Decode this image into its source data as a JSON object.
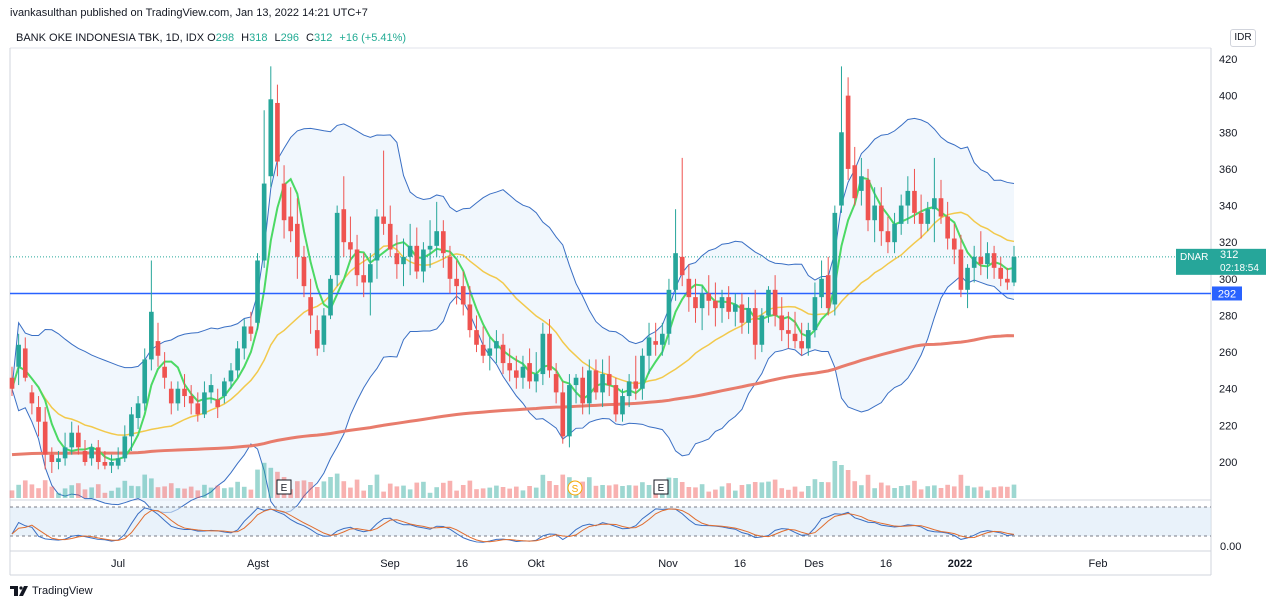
{
  "header": {
    "publisher": "ivankasulthan published on TradingView.com, Jan 13, 2022 14:21 UTC+7"
  },
  "legend": {
    "symbol": "BANK OKE INDONESIA TBK, 1D, IDX",
    "open_label": "O",
    "open": "298",
    "high_label": "H",
    "high": "318",
    "low_label": "L",
    "low": "296",
    "close_label": "C",
    "close": "312",
    "change": "+16 (+5.41%)"
  },
  "currency": "IDR",
  "footer": {
    "brand": "TradingView"
  },
  "colors": {
    "up": "#26a69a",
    "down": "#ef5350",
    "bb": "#3a6fc4",
    "ma_fast": "#4cd964",
    "ma_mid": "#f2c94c",
    "ma_long": "#e87c6c",
    "hline": "#2962ff"
  },
  "chart_data": {
    "type": "candlestick",
    "ylim": [
      185,
      425
    ],
    "y_ticks": [
      "420",
      "400",
      "380",
      "360",
      "340",
      "320",
      "300",
      "280",
      "260",
      "240",
      "220",
      "200"
    ],
    "x_ticks": [
      "Jul",
      "Agst",
      "Sep",
      "16",
      "Okt",
      "Nov",
      "16",
      "Des",
      "16",
      "2022",
      "Feb"
    ],
    "price_label": {
      "ticker": "DNAR",
      "value": "312",
      "countdown": "02:18:54"
    },
    "hline_label": "292",
    "hline_value": 292,
    "event_labels": [
      "E",
      "S",
      "E"
    ],
    "oscillator_tick": "0.00",
    "candles": [
      [
        246,
        252,
        236,
        240
      ],
      [
        252,
        270,
        242,
        264
      ],
      [
        262,
        268,
        244,
        246
      ],
      [
        238,
        242,
        226,
        232
      ],
      [
        230,
        236,
        214,
        222
      ],
      [
        222,
        230,
        196,
        204
      ],
      [
        204,
        208,
        194,
        200
      ],
      [
        200,
        206,
        196,
        202
      ],
      [
        202,
        216,
        198,
        208
      ],
      [
        208,
        222,
        204,
        216
      ],
      [
        216,
        220,
        204,
        208
      ],
      [
        206,
        212,
        198,
        200
      ],
      [
        202,
        210,
        198,
        208
      ],
      [
        208,
        212,
        196,
        200
      ],
      [
        200,
        206,
        196,
        198
      ],
      [
        198,
        204,
        194,
        200
      ],
      [
        198,
        208,
        196,
        202
      ],
      [
        202,
        220,
        200,
        214
      ],
      [
        214,
        230,
        206,
        226
      ],
      [
        224,
        236,
        218,
        232
      ],
      [
        232,
        262,
        228,
        256
      ],
      [
        256,
        310,
        250,
        282
      ],
      [
        266,
        276,
        252,
        258
      ],
      [
        252,
        260,
        240,
        246
      ],
      [
        240,
        244,
        226,
        232
      ],
      [
        232,
        244,
        228,
        240
      ],
      [
        240,
        248,
        230,
        236
      ],
      [
        236,
        242,
        226,
        232
      ],
      [
        232,
        238,
        222,
        226
      ],
      [
        226,
        244,
        224,
        238
      ],
      [
        238,
        248,
        232,
        242
      ],
      [
        234,
        240,
        224,
        230
      ],
      [
        236,
        246,
        232,
        244
      ],
      [
        244,
        254,
        240,
        250
      ],
      [
        250,
        266,
        246,
        262
      ],
      [
        262,
        278,
        256,
        274
      ],
      [
        274,
        282,
        266,
        270
      ],
      [
        276,
        314,
        272,
        310
      ],
      [
        310,
        392,
        306,
        352
      ],
      [
        356,
        416,
        350,
        398
      ],
      [
        396,
        406,
        356,
        364
      ],
      [
        352,
        362,
        322,
        332
      ],
      [
        334,
        350,
        320,
        326
      ],
      [
        330,
        344,
        300,
        312
      ],
      [
        312,
        318,
        290,
        296
      ],
      [
        290,
        300,
        270,
        280
      ],
      [
        272,
        280,
        258,
        262
      ],
      [
        264,
        284,
        260,
        280
      ],
      [
        280,
        302,
        278,
        300
      ],
      [
        302,
        340,
        296,
        336
      ],
      [
        338,
        356,
        312,
        320
      ],
      [
        320,
        334,
        310,
        316
      ],
      [
        316,
        324,
        296,
        302
      ],
      [
        302,
        314,
        290,
        298
      ],
      [
        298,
        314,
        280,
        308
      ],
      [
        310,
        338,
        300,
        334
      ],
      [
        334,
        370,
        324,
        330
      ],
      [
        330,
        340,
        312,
        316
      ],
      [
        314,
        324,
        300,
        308
      ],
      [
        308,
        322,
        296,
        312
      ],
      [
        312,
        330,
        302,
        318
      ],
      [
        318,
        328,
        300,
        304
      ],
      [
        304,
        320,
        298,
        316
      ],
      [
        316,
        332,
        306,
        318
      ],
      [
        318,
        342,
        312,
        326
      ],
      [
        326,
        332,
        306,
        314
      ],
      [
        312,
        318,
        292,
        300
      ],
      [
        300,
        310,
        286,
        296
      ],
      [
        296,
        304,
        280,
        286
      ],
      [
        286,
        296,
        268,
        272
      ],
      [
        272,
        280,
        260,
        264
      ],
      [
        264,
        274,
        254,
        258
      ],
      [
        258,
        268,
        250,
        262
      ],
      [
        262,
        272,
        254,
        266
      ],
      [
        264,
        270,
        248,
        254
      ],
      [
        254,
        262,
        244,
        250
      ],
      [
        250,
        258,
        240,
        246
      ],
      [
        246,
        258,
        240,
        252
      ],
      [
        254,
        262,
        240,
        244
      ],
      [
        244,
        260,
        238,
        248
      ],
      [
        248,
        276,
        242,
        270
      ],
      [
        270,
        278,
        246,
        250
      ],
      [
        248,
        254,
        232,
        238
      ],
      [
        238,
        244,
        210,
        214
      ],
      [
        214,
        248,
        208,
        242
      ],
      [
        242,
        248,
        232,
        246
      ],
      [
        246,
        252,
        226,
        232
      ],
      [
        232,
        256,
        226,
        250
      ],
      [
        250,
        256,
        234,
        238
      ],
      [
        238,
        256,
        230,
        248
      ],
      [
        248,
        258,
        236,
        242
      ],
      [
        242,
        246,
        222,
        226
      ],
      [
        226,
        240,
        222,
        236
      ],
      [
        236,
        248,
        230,
        244
      ],
      [
        244,
        258,
        234,
        240
      ],
      [
        240,
        262,
        234,
        258
      ],
      [
        258,
        276,
        248,
        268
      ],
      [
        266,
        276,
        258,
        264
      ],
      [
        264,
        276,
        258,
        270
      ],
      [
        270,
        300,
        264,
        294
      ],
      [
        294,
        338,
        288,
        314
      ],
      [
        312,
        366,
        296,
        302
      ],
      [
        300,
        308,
        282,
        290
      ],
      [
        290,
        300,
        276,
        284
      ],
      [
        284,
        296,
        272,
        292
      ],
      [
        292,
        302,
        280,
        288
      ],
      [
        288,
        298,
        274,
        284
      ],
      [
        284,
        294,
        276,
        290
      ],
      [
        290,
        296,
        278,
        282
      ],
      [
        282,
        292,
        274,
        286
      ],
      [
        286,
        292,
        270,
        276
      ],
      [
        276,
        290,
        270,
        284
      ],
      [
        284,
        294,
        256,
        264
      ],
      [
        264,
        284,
        260,
        280
      ],
      [
        280,
        296,
        276,
        294
      ],
      [
        294,
        302,
        274,
        280
      ],
      [
        280,
        290,
        266,
        272
      ],
      [
        272,
        282,
        262,
        270
      ],
      [
        270,
        282,
        262,
        266
      ],
      [
        266,
        276,
        258,
        262
      ],
      [
        262,
        276,
        258,
        272
      ],
      [
        272,
        298,
        268,
        290
      ],
      [
        290,
        310,
        284,
        300
      ],
      [
        302,
        312,
        280,
        284
      ],
      [
        286,
        340,
        280,
        336
      ],
      [
        340,
        416,
        336,
        380
      ],
      [
        400,
        410,
        354,
        360
      ],
      [
        362,
        372,
        340,
        344
      ],
      [
        348,
        366,
        340,
        356
      ],
      [
        354,
        360,
        326,
        332
      ],
      [
        332,
        350,
        320,
        340
      ],
      [
        340,
        350,
        318,
        326
      ],
      [
        326,
        334,
        314,
        320
      ],
      [
        320,
        336,
        314,
        330
      ],
      [
        330,
        346,
        324,
        340
      ],
      [
        340,
        356,
        330,
        348
      ],
      [
        348,
        360,
        330,
        336
      ],
      [
        336,
        346,
        322,
        330
      ],
      [
        330,
        342,
        326,
        338
      ],
      [
        338,
        366,
        320,
        344
      ],
      [
        344,
        354,
        330,
        334
      ],
      [
        334,
        342,
        316,
        322
      ],
      [
        322,
        330,
        308,
        316
      ],
      [
        316,
        324,
        290,
        294
      ],
      [
        294,
        308,
        284,
        306
      ],
      [
        306,
        318,
        298,
        312
      ],
      [
        312,
        326,
        302,
        308
      ],
      [
        308,
        320,
        300,
        314
      ],
      [
        314,
        318,
        300,
        306
      ],
      [
        306,
        312,
        296,
        300
      ],
      [
        300,
        306,
        294,
        298
      ],
      [
        298,
        318,
        296,
        312
      ]
    ]
  }
}
